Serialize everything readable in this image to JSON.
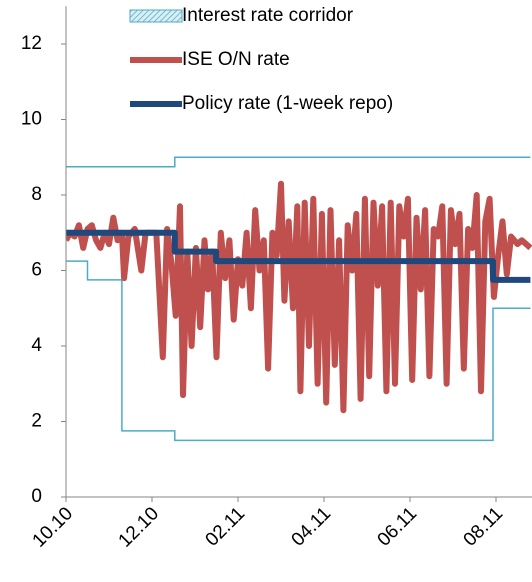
{
  "chart_data": {
    "type": "line",
    "series": [
      {
        "name": "Interest rate corridor",
        "color": "#4bacc6",
        "style": "corridor",
        "x": [
          0,
          0.5,
          0.5,
          1.3,
          1.3,
          2.53,
          2.53,
          9.93,
          9.93,
          10.8
        ],
        "values": [
          6.25,
          6.25,
          5.75,
          5.75,
          1.75,
          1.75,
          1.5,
          1.5,
          5.0,
          5.0
        ],
        "upper": [
          8.75,
          8.75,
          8.75,
          8.75,
          8.75,
          8.75,
          9,
          9,
          9,
          9
        ]
      },
      {
        "name": "ISE O/N rate",
        "color": "#c0504d",
        "x": [
          0,
          0.1,
          0.2,
          0.3,
          0.4,
          0.5,
          0.6,
          0.7,
          0.8,
          0.9,
          1.0,
          1.1,
          1.2,
          1.3,
          1.35,
          1.45,
          1.6,
          1.75,
          1.85,
          2.1,
          2.25,
          2.35,
          2.45,
          2.55,
          2.65,
          2.72,
          2.82,
          2.92,
          3.02,
          3.12,
          3.22,
          3.3,
          3.4,
          3.5,
          3.6,
          3.7,
          3.8,
          3.9,
          4.0,
          4.1,
          4.2,
          4.3,
          4.4,
          4.5,
          4.6,
          4.7,
          4.8,
          4.9,
          5.0,
          5.08,
          5.18,
          5.28,
          5.38,
          5.45,
          5.55,
          5.65,
          5.75,
          5.85,
          5.95,
          6.05,
          6.15,
          6.25,
          6.35,
          6.45,
          6.55,
          6.65,
          6.75,
          6.85,
          6.95,
          7.05,
          7.15,
          7.25,
          7.35,
          7.45,
          7.55,
          7.65,
          7.75,
          7.85,
          7.95,
          8.05,
          8.15,
          8.25,
          8.35,
          8.45,
          8.55,
          8.65,
          8.75,
          8.85,
          8.95,
          9.05,
          9.15,
          9.25,
          9.35,
          9.45,
          9.55,
          9.65,
          9.75,
          9.85,
          9.95,
          10.05,
          10.15,
          10.25,
          10.35,
          10.5,
          10.6,
          10.8
        ],
        "values": [
          6.8,
          7.0,
          6.9,
          7.2,
          6.6,
          7.1,
          7.2,
          6.8,
          6.6,
          7.0,
          6.7,
          7.4,
          6.8,
          7.0,
          5.8,
          6.9,
          7.1,
          6.0,
          7.0,
          7.0,
          3.7,
          7.1,
          6.2,
          4.8,
          7.7,
          2.7,
          6.5,
          4.0,
          6.6,
          4.5,
          6.8,
          5.5,
          6.5,
          3.7,
          7.0,
          5.8,
          6.8,
          4.7,
          6.3,
          5.6,
          7.0,
          5.0,
          7.6,
          6.0,
          6.8,
          3.4,
          7.0,
          6.4,
          8.3,
          5.2,
          7.3,
          5.0,
          7.7,
          2.8,
          7.8,
          4.0,
          7.9,
          3.0,
          7.5,
          2.5,
          7.6,
          3.5,
          6.8,
          2.3,
          7.2,
          6.0,
          7.5,
          2.6,
          7.9,
          3.2,
          7.8,
          5.6,
          7.7,
          2.8,
          7.8,
          3.0,
          7.7,
          6.9,
          7.9,
          3.1,
          7.4,
          5.5,
          7.6,
          3.2,
          7.1,
          6.9,
          7.7,
          3.0,
          7.6,
          6.7,
          7.5,
          3.4,
          7.1,
          6.6,
          8.0,
          2.8,
          7.3,
          7.9,
          5.3,
          6.4,
          7.3,
          5.9,
          6.9,
          6.7,
          6.8,
          6.6
        ]
      },
      {
        "name": "Policy rate (1-week repo)",
        "color": "#1f497d",
        "x": [
          0,
          2.53,
          2.53,
          3.49,
          3.49,
          9.93,
          9.93,
          10.8
        ],
        "values": [
          7,
          7,
          6.5,
          6.5,
          6.25,
          6.25,
          5.75,
          5.75
        ]
      }
    ],
    "xlim": [
      0,
      10.8
    ],
    "xticks": [
      {
        "value": 0,
        "label": "10.10"
      },
      {
        "value": 2,
        "label": "12.10"
      },
      {
        "value": 4,
        "label": "02.11"
      },
      {
        "value": 6,
        "label": "04.11"
      },
      {
        "value": 8,
        "label": "06.11"
      },
      {
        "value": 10,
        "label": "08.11"
      }
    ],
    "ylim": [
      0,
      13
    ],
    "yticks": [
      0,
      2,
      4,
      6,
      8,
      10,
      12
    ],
    "grid": false
  }
}
